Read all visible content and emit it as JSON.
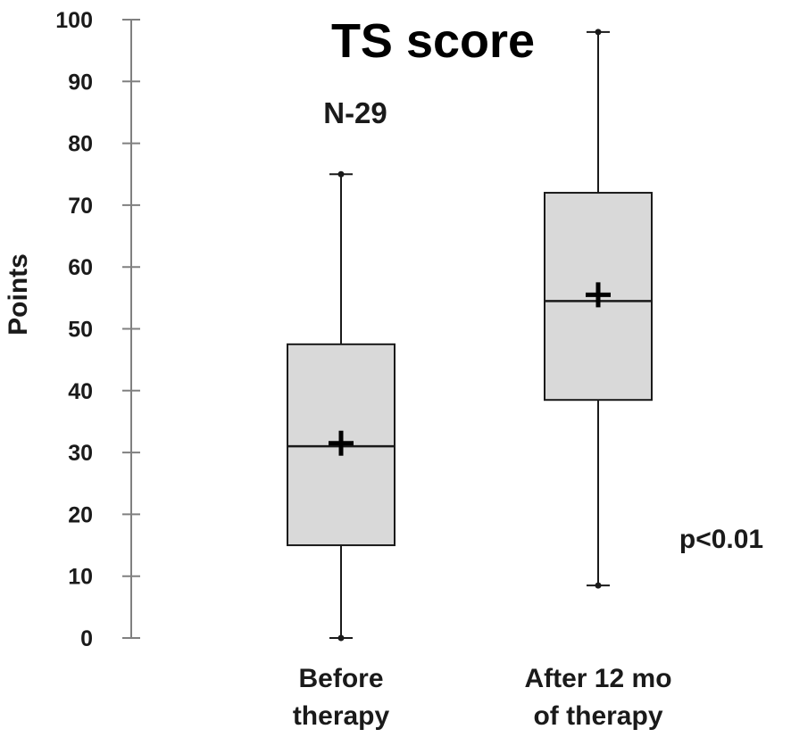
{
  "chart_data": {
    "type": "boxplot",
    "title": "TS score",
    "subtitle": "N-29",
    "ylabel": "Points",
    "xlabel": "",
    "ylim": [
      0,
      100
    ],
    "yticks": [
      0,
      10,
      20,
      30,
      40,
      50,
      60,
      70,
      80,
      90,
      100
    ],
    "annotation": "p<0.01",
    "grid": false,
    "categories": [
      [
        "Before",
        "therapy"
      ],
      [
        "After 12 mo",
        "of therapy"
      ]
    ],
    "boxes": [
      {
        "min": 0,
        "q1": 15,
        "median": 31,
        "q3": 47.5,
        "max": 75,
        "mean": 31.5
      },
      {
        "min": 8.5,
        "q1": 38.5,
        "median": 54.5,
        "q3": 72,
        "max": 98,
        "mean": 55.5
      }
    ],
    "colors": {
      "box_fill": "#d9d9d9",
      "box_stroke": "#1a1a1a",
      "axis": "#808080"
    }
  }
}
